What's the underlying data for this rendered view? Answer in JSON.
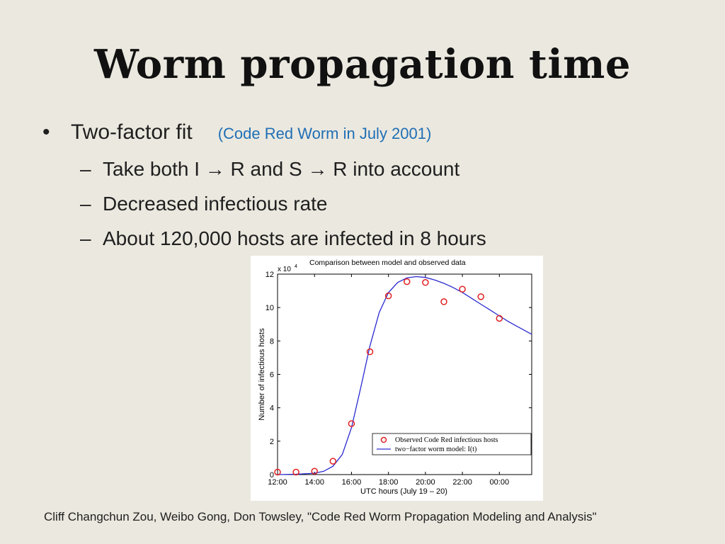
{
  "slide": {
    "title": "Worm propagation time",
    "bullet": {
      "symbol": "•",
      "text": "Two-factor fit",
      "note": "(Code Red Worm in July 2001)"
    },
    "sub_bullets": [
      "Take both I → R and S → R into account",
      "Decreased infectious rate",
      "About 120,000 hosts are infected in 8 hours"
    ],
    "dash_symbol": "–",
    "citation": "Cliff Changchun Zou, Weibo Gong, Don Towsley, \"Code Red Worm Propagation Modeling and Analysis\"",
    "colors": {
      "background": "#ebe8df",
      "note": "#1f6fb5"
    }
  },
  "chart_data": {
    "type": "scatter",
    "title": "Comparison between model and observed data",
    "xlabel": "UTC hours (July 19 – 20)",
    "ylabel": "Number of infectious hosts",
    "y_multiplier": "x 10",
    "y_multiplier_exp": "4",
    "x_ticks": [
      "12:00",
      "14:00",
      "16:00",
      "18:00",
      "20:00",
      "22:00",
      "00:00"
    ],
    "y_ticks": [
      "0",
      "2",
      "4",
      "6",
      "8",
      "10",
      "12"
    ],
    "xlim": [
      "12:00",
      "01:45"
    ],
    "ylim": [
      0,
      12
    ],
    "grid": false,
    "legend_position": "bottom-right",
    "series": [
      {
        "name": "Observed Code Red infectious hosts",
        "style": "circle-marker",
        "color": "#e02020",
        "points": [
          {
            "x": "12:00",
            "y": 0.15
          },
          {
            "x": "13:00",
            "y": 0.15
          },
          {
            "x": "14:00",
            "y": 0.2
          },
          {
            "x": "15:00",
            "y": 0.8
          },
          {
            "x": "16:00",
            "y": 3.05
          },
          {
            "x": "17:00",
            "y": 7.35
          },
          {
            "x": "18:00",
            "y": 10.7
          },
          {
            "x": "19:00",
            "y": 11.55
          },
          {
            "x": "20:00",
            "y": 11.5
          },
          {
            "x": "21:00",
            "y": 10.35
          },
          {
            "x": "22:00",
            "y": 11.1
          },
          {
            "x": "23:00",
            "y": 10.65
          },
          {
            "x": "00:00",
            "y": 9.35
          }
        ]
      },
      {
        "name": "two−factor worm model: I(t)",
        "style": "line",
        "color": "#2a2ad0",
        "points": [
          {
            "x": "12:00",
            "y": 0.0
          },
          {
            "x": "13:00",
            "y": 0.02
          },
          {
            "x": "14:00",
            "y": 0.08
          },
          {
            "x": "14:30",
            "y": 0.2
          },
          {
            "x": "15:00",
            "y": 0.5
          },
          {
            "x": "15:30",
            "y": 1.2
          },
          {
            "x": "16:00",
            "y": 2.8
          },
          {
            "x": "16:30",
            "y": 5.2
          },
          {
            "x": "17:00",
            "y": 7.7
          },
          {
            "x": "17:30",
            "y": 9.7
          },
          {
            "x": "18:00",
            "y": 10.9
          },
          {
            "x": "18:30",
            "y": 11.5
          },
          {
            "x": "19:00",
            "y": 11.78
          },
          {
            "x": "19:30",
            "y": 11.85
          },
          {
            "x": "20:00",
            "y": 11.8
          },
          {
            "x": "20:30",
            "y": 11.65
          },
          {
            "x": "21:00",
            "y": 11.45
          },
          {
            "x": "21:30",
            "y": 11.2
          },
          {
            "x": "22:00",
            "y": 10.9
          },
          {
            "x": "22:30",
            "y": 10.55
          },
          {
            "x": "23:00",
            "y": 10.2
          },
          {
            "x": "23:30",
            "y": 9.85
          },
          {
            "x": "00:00",
            "y": 9.5
          },
          {
            "x": "00:30",
            "y": 9.15
          },
          {
            "x": "01:00",
            "y": 8.85
          },
          {
            "x": "01:30",
            "y": 8.55
          },
          {
            "x": "01:45",
            "y": 8.4
          }
        ]
      }
    ]
  }
}
